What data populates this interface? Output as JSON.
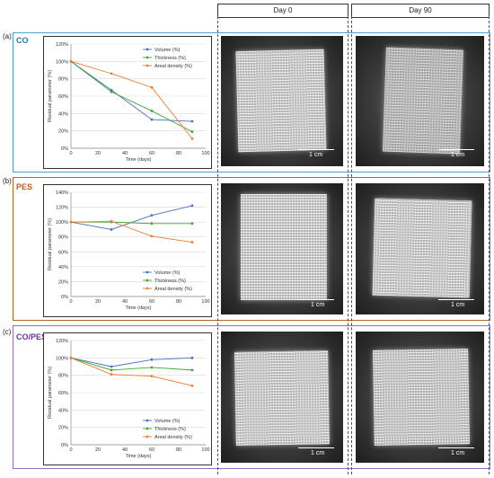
{
  "column_headers": {
    "day0": "Day 0",
    "day90": "Day 90"
  },
  "scale_label": "1 cm",
  "colors": {
    "volume": "#4472c4",
    "thickness": "#3fa535",
    "areal": "#ed7d31",
    "panel_a": "#4a9fd5",
    "panel_b": "#b5651d",
    "panel_c": "#9b6bbf",
    "label_a": "#2e75b6",
    "label_b": "#c55a11",
    "label_c": "#7030a0"
  },
  "panels": [
    {
      "letter": "(a)",
      "label": "CO"
    },
    {
      "letter": "(b)",
      "label": "PES"
    },
    {
      "letter": "(c)",
      "label": "CO/PES"
    }
  ],
  "chart_data": [
    {
      "type": "line",
      "xlabel": "Time (days)",
      "ylabel": "Residual parameter (%)",
      "x": [
        0,
        30,
        60,
        90
      ],
      "xlim": [
        0,
        100
      ],
      "xticks": [
        "0",
        "20",
        "40",
        "60",
        "80",
        "100"
      ],
      "ylim": [
        0,
        120
      ],
      "yticks": [
        "0%",
        "20%",
        "40%",
        "60%",
        "80%",
        "100%",
        "120%"
      ],
      "legend": "top-right",
      "series": [
        {
          "name": "Volume (%)",
          "values": [
            100,
            67,
            33,
            31
          ]
        },
        {
          "name": "Thickness (%)",
          "values": [
            100,
            65,
            43,
            19
          ]
        },
        {
          "name": "Areal density (%)",
          "values": [
            100,
            86,
            70,
            11
          ]
        }
      ]
    },
    {
      "type": "line",
      "xlabel": "Time (days)",
      "ylabel": "Residual parameter (%)",
      "x": [
        0,
        30,
        60,
        90
      ],
      "xlim": [
        0,
        100
      ],
      "xticks": [
        "0",
        "20",
        "40",
        "60",
        "80",
        "100"
      ],
      "ylim": [
        0,
        140
      ],
      "yticks": [
        "0%",
        "20%",
        "40%",
        "60%",
        "80%",
        "100%",
        "120%",
        "140%"
      ],
      "legend": "bottom-right",
      "series": [
        {
          "name": "Volume (%)",
          "values": [
            100,
            90,
            109,
            122
          ]
        },
        {
          "name": "Thickness (%)",
          "values": [
            100,
            100,
            98,
            98
          ]
        },
        {
          "name": "Areal density (%)",
          "values": [
            100,
            101,
            81,
            73
          ]
        }
      ]
    },
    {
      "type": "line",
      "xlabel": "Time (days)",
      "ylabel": "Residual parameter (%)",
      "x": [
        0,
        30,
        60,
        90
      ],
      "xlim": [
        0,
        100
      ],
      "xticks": [
        "0",
        "20",
        "40",
        "60",
        "80",
        "100"
      ],
      "ylim": [
        0,
        120
      ],
      "yticks": [
        "0%",
        "20%",
        "40%",
        "60%",
        "80%",
        "100%",
        "120%"
      ],
      "legend": "bottom-right",
      "series": [
        {
          "name": "Volume (%)",
          "values": [
            100,
            90,
            98,
            100
          ]
        },
        {
          "name": "Thickness (%)",
          "values": [
            100,
            86,
            89,
            86
          ]
        },
        {
          "name": "Areal density (%)",
          "values": [
            100,
            81,
            79,
            68
          ]
        }
      ]
    }
  ]
}
